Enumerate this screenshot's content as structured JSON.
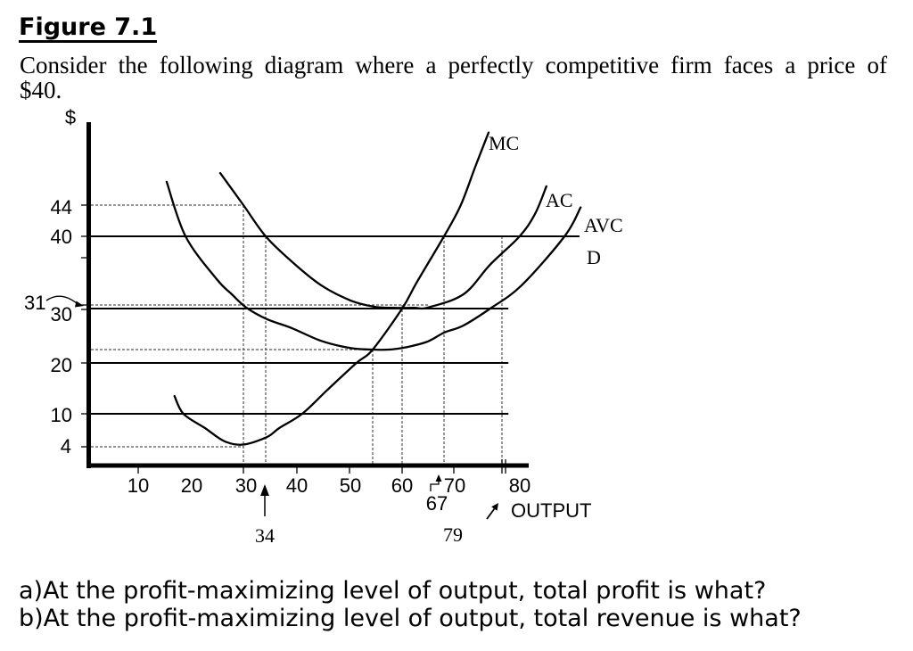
{
  "figure": {
    "title": "Figure 7.1",
    "description_lines": [
      "Consider the following diagram where a perfectly competitive firm faces a price of",
      "$40."
    ]
  },
  "questions": [
    "a)At the profit-maximizing level of output, total profit is what?",
    "b)At the profit-maximizing level of output, total revenue is what?"
  ],
  "chart_data": {
    "type": "line",
    "title": "",
    "xlabel": "OUTPUT",
    "ylabel": "$",
    "x_ticks": [
      "10",
      "20",
      "30",
      "40",
      "50",
      "60",
      "70",
      "80"
    ],
    "y_ticks": [
      "44",
      "40",
      "31",
      "30",
      "20",
      "10",
      "4"
    ],
    "x_annotations": [
      "34",
      "67",
      "79"
    ],
    "xlim": [
      0,
      85
    ],
    "ylim": [
      0,
      54
    ],
    "grid": false,
    "legend": "none (curves labeled directly)",
    "price": 40,
    "curve_labels": {
      "mc": "MC",
      "ac": "AC",
      "avc": "AVC",
      "d": "D"
    },
    "series": [
      {
        "name": "MC",
        "points": [
          [
            16.9,
            13.5
          ],
          [
            18.6,
            10
          ],
          [
            22.7,
            7.4
          ],
          [
            26.4,
            5.0
          ],
          [
            30,
            4.4
          ],
          [
            34.3,
            5.8
          ],
          [
            36.6,
            7.4
          ],
          [
            41,
            10
          ],
          [
            45.8,
            14.7
          ],
          [
            51.5,
            20
          ],
          [
            55,
            22
          ],
          [
            60,
            30
          ],
          [
            62.4,
            33.9
          ],
          [
            67,
            40
          ],
          [
            71.3,
            44
          ],
          [
            74,
            48.9
          ],
          [
            76.5,
            53.3
          ]
        ]
      },
      {
        "name": "AC",
        "points": [
          [
            25.6,
            48.1
          ],
          [
            30,
            44
          ],
          [
            34,
            40
          ],
          [
            39,
            36.7
          ],
          [
            44.6,
            33.6
          ],
          [
            50.2,
            31.6
          ],
          [
            55.3,
            30.5
          ],
          [
            58.5,
            30.2
          ],
          [
            62,
            30.2
          ],
          [
            64.3,
            30.3
          ],
          [
            71.8,
            32.4
          ],
          [
            76.8,
            36.3
          ],
          [
            82.3,
            40
          ],
          [
            85.2,
            42.9
          ],
          [
            87.3,
            46.4
          ]
        ]
      },
      {
        "name": "AVC",
        "points": [
          [
            15.4,
            47
          ],
          [
            19,
            40
          ],
          [
            24.9,
            34.4
          ],
          [
            27.8,
            32.4
          ],
          [
            30.5,
            30.3
          ],
          [
            34.3,
            27.9
          ],
          [
            39,
            26.2
          ],
          [
            44.6,
            23.7
          ],
          [
            50.2,
            22.3
          ],
          [
            55,
            22
          ],
          [
            58.8,
            22.1
          ],
          [
            63.9,
            23.4
          ],
          [
            67,
            25.3
          ],
          [
            71.8,
            26.7
          ],
          [
            76.8,
            30
          ],
          [
            82.7,
            33.6
          ],
          [
            90.7,
            40
          ],
          [
            93.7,
            43.7
          ]
        ]
      }
    ],
    "lines": {
      "solid_h": [
        {
          "name": "D",
          "y": 40,
          "x_end": 93.5
        },
        {
          "name": "h30",
          "y": 30,
          "x_end": 80.2
        },
        {
          "name": "h20",
          "y": 20,
          "x_end": 80.2
        },
        {
          "name": "h10",
          "y": 10,
          "x_end": 80.2
        }
      ],
      "dotted_h": [
        {
          "y": 44,
          "x_end": 30
        },
        {
          "y": 31,
          "x_end": 64.5
        },
        {
          "y": 22,
          "x_end": 55
        },
        {
          "y": 4,
          "x_end": 30
        }
      ],
      "dotted_v": [
        {
          "x": 30,
          "y_end": 44
        },
        {
          "x": 34,
          "y_end": 40
        },
        {
          "x": 55,
          "y_end": 22
        },
        {
          "x": 60,
          "y_end": 31
        },
        {
          "x": 67,
          "y_end": 40
        },
        {
          "x": 79,
          "y_end": 40
        }
      ]
    }
  }
}
